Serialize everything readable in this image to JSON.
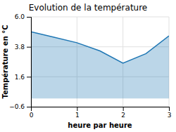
{
  "chart_data": {
    "type": "area",
    "title": "Evolution de la température",
    "xlabel": "heure par heure",
    "ylabel": "Température en °C",
    "x": [
      0,
      0.5,
      1,
      1.5,
      2,
      2.5,
      3
    ],
    "y": [
      4.9,
      4.5,
      4.1,
      3.5,
      2.6,
      3.3,
      4.6
    ],
    "baseline": 0,
    "xlim": [
      0,
      3
    ],
    "ylim": [
      -0.6,
      6.0
    ],
    "xticks": [
      0,
      1,
      2,
      3
    ],
    "yticks": [
      {
        "value": -0.6,
        "label": "−0.6"
      },
      1.6,
      3.8,
      {
        "value": 6.0,
        "label": "6.0"
      }
    ],
    "grid": true
  }
}
